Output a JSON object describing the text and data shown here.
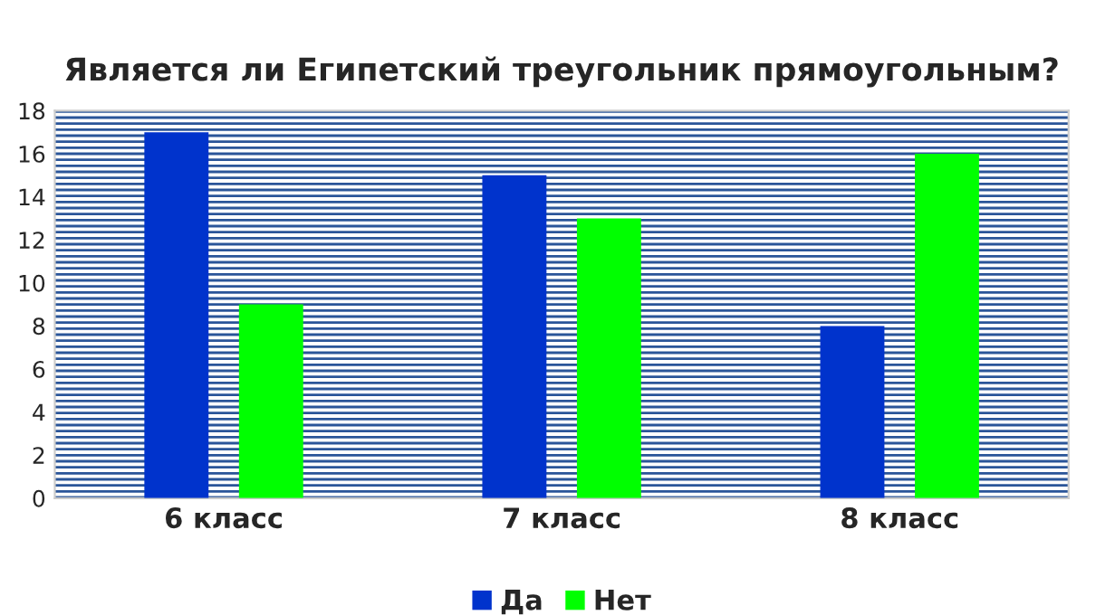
{
  "chart_data": {
    "type": "bar",
    "title": "Является ли Египетский треугольник прямоугольным?",
    "categories": [
      "6 класс",
      "7 класс",
      "8 класс"
    ],
    "series": [
      {
        "name": "Да",
        "color": "#0033cc",
        "values": [
          17,
          15,
          8
        ]
      },
      {
        "name": "Нет",
        "color": "#00ff00",
        "values": [
          9,
          13,
          16
        ]
      }
    ],
    "ylim": [
      0,
      18
    ],
    "yticks": [
      0,
      2,
      4,
      6,
      8,
      10,
      12,
      14,
      16,
      18
    ],
    "legend": "bottom"
  }
}
